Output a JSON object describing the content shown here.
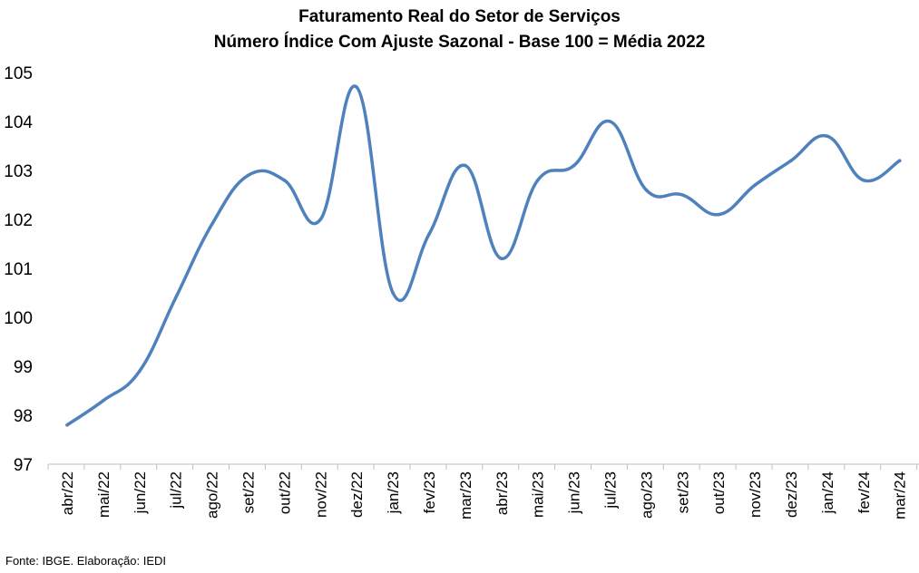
{
  "chart_data": {
    "type": "line",
    "title": "Faturamento Real do Setor de Serviços",
    "subtitle": "Número Índice Com Ajuste Sazonal - Base 100 = Média 2022",
    "xlabel": "",
    "ylabel": "",
    "categories": [
      "abr/22",
      "mai/22",
      "jun/22",
      "jul/22",
      "ago/22",
      "set/22",
      "out/22",
      "nov/22",
      "dez/22",
      "jan/23",
      "fev/23",
      "mar/23",
      "abr/23",
      "mai/23",
      "jun/23",
      "jul/23",
      "ago/23",
      "set/23",
      "out/23",
      "nov/23",
      "dez/23",
      "jan/24",
      "fev/24",
      "mar/24"
    ],
    "series": [
      {
        "values": [
          97.8,
          98.3,
          98.9,
          100.4,
          101.9,
          102.9,
          102.8,
          102.0,
          104.7,
          100.5,
          101.7,
          103.1,
          101.2,
          102.8,
          103.1,
          104.0,
          102.6,
          102.5,
          102.1,
          102.7,
          103.2,
          103.7,
          102.8,
          103.2
        ],
        "color": "#4f81bd"
      }
    ],
    "ylim": [
      97,
      105
    ],
    "yticks": [
      97,
      98,
      99,
      100,
      101,
      102,
      103,
      104,
      105
    ],
    "grid": false,
    "legend": "none"
  },
  "footer": {
    "source": "Fonte: IBGE. Elaboração: IEDI"
  }
}
